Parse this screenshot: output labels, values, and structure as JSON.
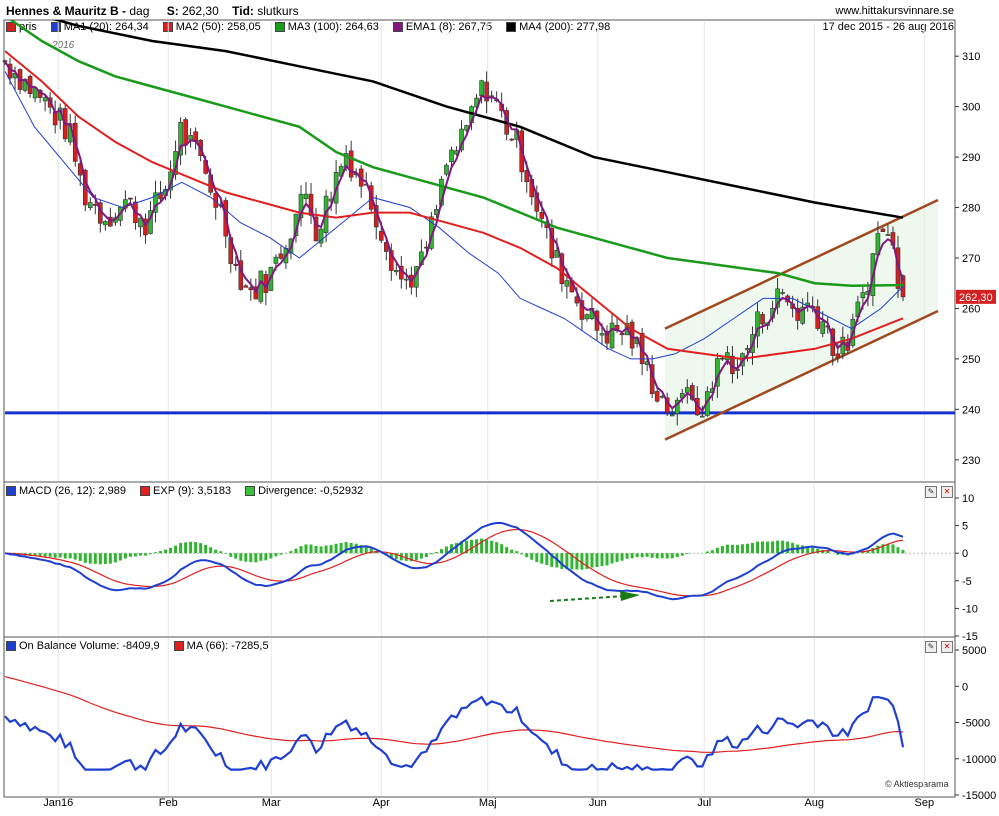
{
  "header": {
    "title": "Hennes & Mauritz B",
    "title_sep": " - ",
    "interval": "dag",
    "price_label": "S:",
    "price_value": "262,30",
    "time_label": "Tid:",
    "time_value": "slutkurs",
    "site": "www.hittakursvinnare.se",
    "date_range": "17 dec 2015 - 26 aug 2016",
    "year_label": "2016"
  },
  "legend_price": [
    {
      "label": "pris",
      "color": "#d02020"
    },
    {
      "label": "MA1 (20): 264,34",
      "color": "#1f3fd0"
    },
    {
      "label": "MA2 (50): 258,05",
      "color": "#e02020"
    },
    {
      "label": "MA3 (100): 264,63",
      "color": "#1a9a1a"
    },
    {
      "label": "EMA1 (8): 267,75",
      "color": "#801880"
    },
    {
      "label": "MA4 (200): 277,98",
      "color": "#000000"
    }
  ],
  "legend_macd": [
    {
      "label": "MACD (26, 12): 2,989",
      "color": "#1f3fd0"
    },
    {
      "label": "EXP (9): 3,5183",
      "color": "#e02020"
    },
    {
      "label": "Divergence: -0,52932",
      "color": "#3ac03a"
    }
  ],
  "legend_obv": [
    {
      "label": "On Balance Volume: -8409,9",
      "color": "#1f3fd0"
    },
    {
      "label": "MA (66): -7285,5",
      "color": "#e02020"
    }
  ],
  "price_tag": "262,30",
  "watermark": "© Aktiesparama",
  "colors": {
    "up": "#2fb52f",
    "down": "#d42020",
    "ma1": "#1f3fd0",
    "ma2": "#e02020",
    "ma3": "#1a9a1a",
    "ema": "#801880",
    "ma4": "#000000",
    "support": "#1530d0",
    "channel": "#a0491e"
  },
  "chart_data": [
    {
      "type": "line",
      "title": "Hennes & Mauritz B - dag",
      "x_range": [
        "2015-12-17",
        "2016-08-26"
      ],
      "x_ticks": [
        "Jan16",
        "Feb",
        "Mar",
        "Apr",
        "Maj",
        "Jun",
        "Jul",
        "Aug",
        "Sep"
      ],
      "y_ticks": [
        "310",
        "300",
        "290",
        "280",
        "270",
        "260",
        "250",
        "240",
        "230"
      ],
      "ylim": [
        226,
        314
      ],
      "last_price": 262.3,
      "support_level": 239.3,
      "close": [
        [
          "2015-12-17",
          309
        ],
        [
          "2015-12-28",
          301
        ],
        [
          "2016-01-04",
          295
        ],
        [
          "2016-01-08",
          283
        ],
        [
          "2016-01-14",
          278
        ],
        [
          "2016-01-20",
          281
        ],
        [
          "2016-01-26",
          277
        ],
        [
          "2016-02-01",
          285
        ],
        [
          "2016-02-04",
          296
        ],
        [
          "2016-02-10",
          289
        ],
        [
          "2016-02-16",
          279
        ],
        [
          "2016-02-20",
          268
        ],
        [
          "2016-02-24",
          263
        ],
        [
          "2016-03-01",
          267
        ],
        [
          "2016-03-07",
          277
        ],
        [
          "2016-03-11",
          283
        ],
        [
          "2016-03-14",
          275
        ],
        [
          "2016-03-18",
          284
        ],
        [
          "2016-03-22",
          291
        ],
        [
          "2016-03-28",
          283
        ],
        [
          "2016-03-31",
          278
        ],
        [
          "2016-04-04",
          270
        ],
        [
          "2016-04-07",
          265
        ],
        [
          "2016-04-12",
          268
        ],
        [
          "2016-04-16",
          278
        ],
        [
          "2016-04-20",
          290
        ],
        [
          "2016-04-24",
          293
        ],
        [
          "2016-04-28",
          302
        ],
        [
          "2016-05-01",
          304
        ],
        [
          "2016-05-05",
          298
        ],
        [
          "2016-05-09",
          293
        ],
        [
          "2016-05-12",
          287
        ],
        [
          "2016-05-15",
          280
        ],
        [
          "2016-05-19",
          271
        ],
        [
          "2016-05-23",
          266
        ],
        [
          "2016-05-27",
          261
        ],
        [
          "2016-06-01",
          256
        ],
        [
          "2016-06-05",
          255
        ],
        [
          "2016-06-09",
          256
        ],
        [
          "2016-06-12",
          252
        ],
        [
          "2016-06-16",
          246
        ],
        [
          "2016-06-20",
          241
        ],
        [
          "2016-06-24",
          239
        ],
        [
          "2016-06-27",
          248
        ],
        [
          "2016-06-29",
          236
        ],
        [
          "2016-07-03",
          246
        ],
        [
          "2016-07-07",
          251
        ],
        [
          "2016-07-11",
          248
        ],
        [
          "2016-07-15",
          256
        ],
        [
          "2016-07-19",
          260
        ],
        [
          "2016-07-23",
          263
        ],
        [
          "2016-07-27",
          259
        ],
        [
          "2016-07-31",
          261
        ],
        [
          "2016-08-04",
          257
        ],
        [
          "2016-08-08",
          250
        ],
        [
          "2016-08-12",
          256
        ],
        [
          "2016-08-16",
          266
        ],
        [
          "2016-08-20",
          277
        ],
        [
          "2016-08-23",
          272
        ],
        [
          "2016-08-26",
          262.3
        ]
      ],
      "series": [
        {
          "name": "MA1 (20)",
          "values": [
            [
              0,
              307
            ],
            [
              8,
              296
            ],
            [
              16,
              289
            ],
            [
              24,
              282
            ],
            [
              32,
              280
            ],
            [
              40,
              282
            ],
            [
              48,
              285
            ],
            [
              56,
              282
            ],
            [
              64,
              277
            ],
            [
              72,
              274
            ],
            [
              80,
              270
            ],
            [
              90,
              276
            ],
            [
              100,
              282
            ],
            [
              110,
              280
            ],
            [
              118,
              276
            ],
            [
              126,
              271
            ],
            [
              134,
              267
            ],
            [
              140,
              262
            ],
            [
              146,
              260
            ],
            [
              152,
              258
            ],
            [
              158,
              255
            ],
            [
              164,
              252
            ],
            [
              170,
              250
            ],
            [
              176,
              250
            ],
            [
              182,
              251
            ],
            [
              190,
              254
            ],
            [
              198,
              258
            ],
            [
              206,
              262
            ],
            [
              214,
              262
            ],
            [
              222,
              259
            ],
            [
              230,
              256
            ],
            [
              238,
              260
            ],
            [
              244,
              264.34
            ]
          ]
        },
        {
          "name": "MA2 (50)",
          "values": [
            [
              0,
              311
            ],
            [
              10,
              305
            ],
            [
              20,
              298
            ],
            [
              30,
              293
            ],
            [
              40,
              289
            ],
            [
              50,
              286
            ],
            [
              60,
              283
            ],
            [
              70,
              281
            ],
            [
              80,
              279
            ],
            [
              90,
              278
            ],
            [
              100,
              279
            ],
            [
              110,
              279
            ],
            [
              120,
              277
            ],
            [
              130,
              275
            ],
            [
              140,
              272
            ],
            [
              150,
              268
            ],
            [
              160,
              262
            ],
            [
              170,
              256
            ],
            [
              180,
              252
            ],
            [
              190,
              251
            ],
            [
              200,
              250
            ],
            [
              210,
              251
            ],
            [
              220,
              252
            ],
            [
              230,
              254
            ],
            [
              244,
              258.05
            ]
          ]
        },
        {
          "name": "MA3 (100)",
          "values": [
            [
              0,
              318
            ],
            [
              10,
              313
            ],
            [
              20,
              309
            ],
            [
              30,
              306
            ],
            [
              40,
              304
            ],
            [
              50,
              302
            ],
            [
              60,
              300
            ],
            [
              70,
              298
            ],
            [
              80,
              296
            ],
            [
              90,
              291
            ],
            [
              100,
              288
            ],
            [
              110,
              286
            ],
            [
              120,
              284
            ],
            [
              130,
              282
            ],
            [
              140,
              279
            ],
            [
              150,
              276
            ],
            [
              160,
              274
            ],
            [
              170,
              272
            ],
            [
              180,
              270
            ],
            [
              190,
              269
            ],
            [
              200,
              268
            ],
            [
              210,
              267
            ],
            [
              220,
              265
            ],
            [
              230,
              264.5
            ],
            [
              244,
              264.63
            ]
          ]
        },
        {
          "name": "MA4 (200)",
          "values": [
            [
              0,
              320
            ],
            [
              20,
              316
            ],
            [
              40,
              313
            ],
            [
              60,
              311
            ],
            [
              80,
              308
            ],
            [
              100,
              305
            ],
            [
              120,
              300
            ],
            [
              140,
              296
            ],
            [
              160,
              290
            ],
            [
              180,
              287
            ],
            [
              200,
              284
            ],
            [
              220,
              281
            ],
            [
              244,
              277.98
            ]
          ]
        }
      ],
      "channel_upper": [
        [
          0.0,
          256
        ],
        [
          1.0,
          281.5
        ]
      ],
      "channel_lower": [
        [
          0.0,
          234
        ],
        [
          1.0,
          259.5
        ]
      ]
    },
    {
      "type": "line",
      "title": "MACD (26, 12)",
      "y_ticks": [
        "10",
        "5",
        "0",
        "-5",
        "-10",
        "-15"
      ],
      "ylim": [
        -15,
        10
      ],
      "macd": 2.989,
      "signal": 3.5183,
      "divergence": -0.52932
    },
    {
      "type": "line",
      "title": "On Balance Volume",
      "y_ticks": [
        "5000",
        "0",
        "-5000",
        "-10000",
        "-15000"
      ],
      "ylim": [
        -15000,
        5000
      ],
      "obv": -8409.9,
      "ma66": -7285.5
    }
  ]
}
